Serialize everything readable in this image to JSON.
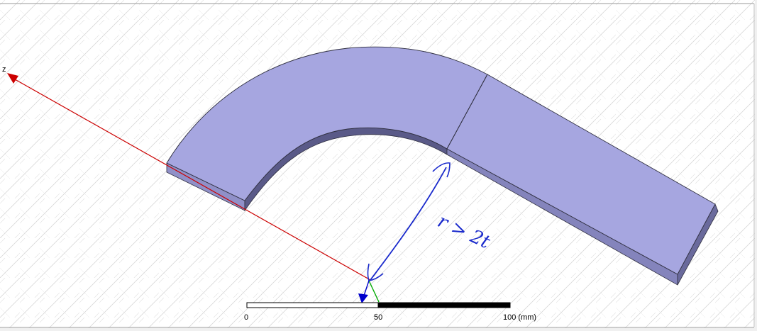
{
  "viewport": {
    "background": "#ffffff",
    "hatch_color": "#d2d2d2",
    "frame_color": "#9a9a9a"
  },
  "model": {
    "body_top_color": "#a6a6e0",
    "body_side_color": "#8484bc",
    "body_inner_side_color": "#5a5a88",
    "edge_color": "#303040"
  },
  "axes": {
    "z_label": "z",
    "z_color": "#cc0000",
    "x_color": "#0000cc",
    "y_color": "#00aa00"
  },
  "annotation": {
    "text": "r > 2t",
    "color": "#1a2acc"
  },
  "scale_bar": {
    "tick_0": "0",
    "tick_mid": "50",
    "tick_end": "100 (mm)"
  }
}
